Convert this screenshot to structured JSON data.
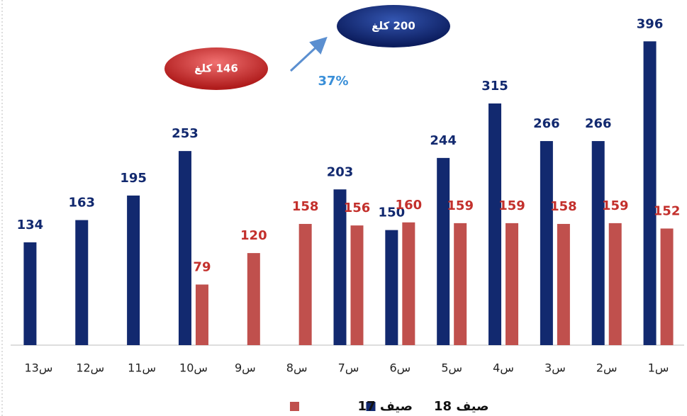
{
  "chart_data": {
    "type": "bar",
    "categories": [
      "س13",
      "س12",
      "س11",
      "س10",
      "س9",
      "س8",
      "س7",
      "س6",
      "س5",
      "س4",
      "س3",
      "س2",
      "س1"
    ],
    "series": [
      {
        "name": "صيف 18",
        "color": "#12296f",
        "label_color": "#12296f",
        "values": [
          134,
          163,
          195,
          253,
          null,
          null,
          203,
          150,
          244,
          315,
          266,
          266,
          396
        ]
      },
      {
        "name": "صيف 17",
        "color": "#c0504d",
        "label_color": "#c3302c",
        "values": [
          null,
          null,
          null,
          79,
          120,
          158,
          156,
          160,
          159,
          159,
          158,
          159,
          152
        ]
      }
    ],
    "ylim": [
      0,
      400
    ],
    "annotations": [
      "146 كلغ",
      "200 كلغ",
      "37%"
    ]
  }
}
